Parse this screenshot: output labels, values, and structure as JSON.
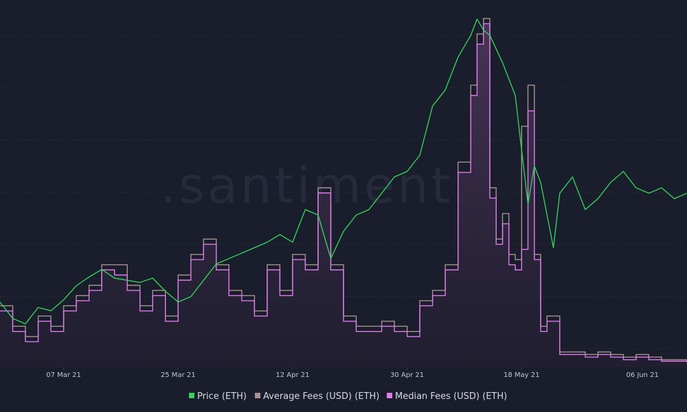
{
  "watermark": ".santiment.",
  "colors": {
    "background": "#1a1d2b",
    "grid": "#2a2e3f",
    "price": "#2fd35a",
    "average_fees": "#a89490",
    "median_fees": "#e27af0",
    "median_fill_top": "#4a3658",
    "median_fill_bottom": "#231f32"
  },
  "chart_data": {
    "type": "line",
    "title": "",
    "xlabel": "",
    "ylabel": "",
    "x_tick_labels": [
      "07 Mar 21",
      "25 Mar 21",
      "12 Apr 21",
      "30 Apr 21",
      "18 May 21",
      "06 Jun 21"
    ],
    "x_range": [
      "2021-02-25",
      "2021-06-13"
    ],
    "y_axis_visible": false,
    "grid": "horizontal",
    "legend_position": "bottom-center",
    "series": [
      {
        "name": "Price (ETH)",
        "style": "line",
        "x": [
          "2021-02-25",
          "2021-02-27",
          "2021-03-01",
          "2021-03-03",
          "2021-03-05",
          "2021-03-07",
          "2021-03-09",
          "2021-03-11",
          "2021-03-13",
          "2021-03-15",
          "2021-03-17",
          "2021-03-19",
          "2021-03-21",
          "2021-03-23",
          "2021-03-25",
          "2021-03-27",
          "2021-03-29",
          "2021-03-31",
          "2021-04-02",
          "2021-04-04",
          "2021-04-06",
          "2021-04-08",
          "2021-04-10",
          "2021-04-12",
          "2021-04-14",
          "2021-04-16",
          "2021-04-18",
          "2021-04-20",
          "2021-04-22",
          "2021-04-24",
          "2021-04-26",
          "2021-04-28",
          "2021-04-30",
          "2021-05-02",
          "2021-05-04",
          "2021-05-06",
          "2021-05-08",
          "2021-05-09",
          "2021-05-10",
          "2021-05-11",
          "2021-05-12",
          "2021-05-13",
          "2021-05-15",
          "2021-05-17",
          "2021-05-19",
          "2021-05-20",
          "2021-05-21",
          "2021-05-23",
          "2021-05-24",
          "2021-05-26",
          "2021-05-28",
          "2021-05-30",
          "2021-06-01",
          "2021-06-03",
          "2021-06-05",
          "2021-06-07",
          "2021-06-09",
          "2021-06-11",
          "2021-06-13"
        ],
        "y": [
          1600,
          1450,
          1400,
          1550,
          1520,
          1620,
          1750,
          1830,
          1900,
          1820,
          1800,
          1780,
          1820,
          1700,
          1600,
          1650,
          1800,
          1950,
          2000,
          2050,
          2100,
          2150,
          2220,
          2150,
          2450,
          2400,
          2000,
          2250,
          2400,
          2450,
          2600,
          2750,
          2800,
          2950,
          3400,
          3550,
          3850,
          3950,
          4050,
          4200,
          4100,
          4050,
          3800,
          3500,
          2500,
          2850,
          2700,
          2100,
          2600,
          2750,
          2450,
          2550,
          2700,
          2800,
          2650,
          2600,
          2650,
          2550,
          2600
        ]
      },
      {
        "name": "Average Fees (USD) (ETH)",
        "style": "step",
        "x": [
          "2021-02-25",
          "2021-02-27",
          "2021-03-01",
          "2021-03-03",
          "2021-03-05",
          "2021-03-07",
          "2021-03-09",
          "2021-03-11",
          "2021-03-13",
          "2021-03-15",
          "2021-03-17",
          "2021-03-19",
          "2021-03-21",
          "2021-03-23",
          "2021-03-25",
          "2021-03-27",
          "2021-03-29",
          "2021-03-31",
          "2021-04-02",
          "2021-04-04",
          "2021-04-06",
          "2021-04-08",
          "2021-04-10",
          "2021-04-12",
          "2021-04-14",
          "2021-04-16",
          "2021-04-18",
          "2021-04-20",
          "2021-04-22",
          "2021-04-24",
          "2021-04-26",
          "2021-04-28",
          "2021-04-30",
          "2021-05-02",
          "2021-05-04",
          "2021-05-06",
          "2021-05-08",
          "2021-05-10",
          "2021-05-11",
          "2021-05-12",
          "2021-05-13",
          "2021-05-14",
          "2021-05-15",
          "2021-05-16",
          "2021-05-17",
          "2021-05-18",
          "2021-05-19",
          "2021-05-20",
          "2021-05-21",
          "2021-05-22",
          "2021-05-24",
          "2021-05-26",
          "2021-05-28",
          "2021-05-30",
          "2021-06-01",
          "2021-06-03",
          "2021-06-05",
          "2021-06-07",
          "2021-06-09",
          "2021-06-11",
          "2021-06-13"
        ],
        "y": [
          12,
          8,
          6,
          10,
          8,
          12,
          14,
          16,
          20,
          20,
          16,
          12,
          15,
          10,
          18,
          22,
          25,
          20,
          15,
          14,
          11,
          20,
          15,
          22,
          20,
          35,
          20,
          10,
          8,
          8,
          9,
          8,
          7,
          13,
          15,
          20,
          40,
          55,
          65,
          68,
          35,
          25,
          30,
          22,
          21,
          47,
          55,
          22,
          8,
          10,
          3,
          3,
          2.5,
          3,
          2.5,
          2,
          2.5,
          2,
          1.5,
          1.5,
          1.2
        ]
      },
      {
        "name": "Median Fees (USD) (ETH)",
        "style": "step",
        "x": [
          "2021-02-25",
          "2021-02-27",
          "2021-03-01",
          "2021-03-03",
          "2021-03-05",
          "2021-03-07",
          "2021-03-09",
          "2021-03-11",
          "2021-03-13",
          "2021-03-15",
          "2021-03-17",
          "2021-03-19",
          "2021-03-21",
          "2021-03-23",
          "2021-03-25",
          "2021-03-27",
          "2021-03-29",
          "2021-03-31",
          "2021-04-02",
          "2021-04-04",
          "2021-04-06",
          "2021-04-08",
          "2021-04-10",
          "2021-04-12",
          "2021-04-14",
          "2021-04-16",
          "2021-04-18",
          "2021-04-20",
          "2021-04-22",
          "2021-04-24",
          "2021-04-26",
          "2021-04-28",
          "2021-04-30",
          "2021-05-02",
          "2021-05-04",
          "2021-05-06",
          "2021-05-08",
          "2021-05-10",
          "2021-05-11",
          "2021-05-12",
          "2021-05-13",
          "2021-05-14",
          "2021-05-15",
          "2021-05-16",
          "2021-05-17",
          "2021-05-18",
          "2021-05-19",
          "2021-05-20",
          "2021-05-21",
          "2021-05-22",
          "2021-05-24",
          "2021-05-26",
          "2021-05-28",
          "2021-05-30",
          "2021-06-01",
          "2021-06-03",
          "2021-06-05",
          "2021-06-07",
          "2021-06-09",
          "2021-06-11",
          "2021-06-13"
        ],
        "y": [
          11,
          7,
          5,
          9,
          7,
          11,
          13,
          15,
          19,
          18,
          15,
          11,
          14,
          9,
          17,
          21,
          24,
          19,
          14,
          13,
          10,
          19,
          14,
          21,
          19,
          34,
          19,
          9,
          7,
          7,
          8,
          7,
          6,
          12,
          14,
          19,
          38,
          53,
          63,
          67,
          33,
          24,
          28,
          20,
          19,
          23,
          50,
          21,
          7,
          9,
          2.5,
          2.5,
          2,
          2.5,
          2,
          1.5,
          2,
          1.5,
          1.2,
          1.2,
          1
        ]
      }
    ]
  },
  "legend": [
    {
      "label": "Price (ETH)",
      "color": "#2fd35a"
    },
    {
      "label": "Average Fees (USD) (ETH)",
      "color": "#a89490"
    },
    {
      "label": "Median Fees (USD) (ETH)",
      "color": "#e27af0"
    }
  ]
}
